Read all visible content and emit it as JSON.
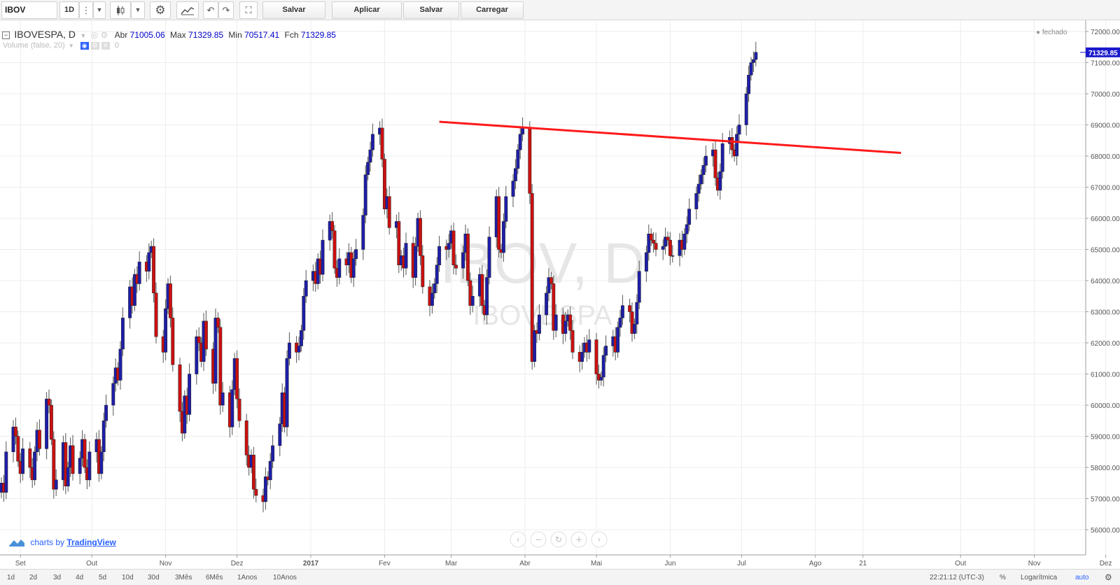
{
  "toolbar": {
    "symbol": "IBOV",
    "interval": "1D",
    "buttons": {
      "save_template": "Salvar Template",
      "apply_template": "Aplicar Template",
      "save_chart": "Salvar Chart",
      "load_chart": "Carregar Chart"
    }
  },
  "legend": {
    "symbol": "IBOVESPA, D",
    "open_label": "Abr",
    "open_value": "71005.06",
    "high_label": "Max",
    "high_value": "71329.85",
    "low_label": "Min",
    "low_value": "70517.41",
    "close_label": "Fch",
    "close_value": "71329.85",
    "volume_label": "Volume (false, 20)",
    "volume_value": "0",
    "status": "fechado"
  },
  "watermark": {
    "line1": "IBOV, D",
    "line2": "IBOVESPA"
  },
  "branding": {
    "prefix": "charts by",
    "link": "TradingView"
  },
  "price_label": "71329.85",
  "bottom_bar": {
    "timeframes": [
      "1d",
      "2d",
      "3d",
      "4d",
      "5d",
      "10d",
      "30d",
      "3Mês",
      "6Mês",
      "1Anos",
      "10Anos"
    ],
    "clock": "22:21:12 (UTC-3)",
    "percent": "%",
    "log": "Logarítmica",
    "auto": "auto"
  },
  "colors": {
    "up": "#1e1ea8",
    "down": "#cc1010",
    "trendline": "#ff1a1a",
    "accent": "#2962ff"
  },
  "chart_data": {
    "type": "candlestick",
    "title": "IBOVESPA, D",
    "y_axis": {
      "ticks": [
        "56000.00",
        "57000.00",
        "58000.00",
        "59000.00",
        "60000.00",
        "61000.00",
        "62000.00",
        "63000.00",
        "64000.00",
        "65000.00",
        "66000.00",
        "67000.00",
        "68000.00",
        "69000.00",
        "70000.00",
        "71000.00",
        "72000.00"
      ],
      "ylim": [
        55500,
        72300
      ]
    },
    "x_axis": {
      "labels": [
        "Set",
        "Out",
        "Nov",
        "Dez",
        "2017",
        "Fev",
        "Mar",
        "Abr",
        "Mai",
        "Jun",
        "Jul",
        "Ago",
        "21",
        "Out",
        "Nov",
        "Dez"
      ],
      "range": [
        "2016-08-24",
        "2017-12-31"
      ]
    },
    "closes": [
      57500,
      57200,
      58500,
      59300,
      59000,
      58200,
      57800,
      58600,
      58000,
      57600,
      58500,
      59200,
      58600,
      60200,
      60000,
      58900,
      57300,
      57600,
      58800,
      57400,
      58000,
      58700,
      57800,
      58300,
      58900,
      58000,
      57600,
      58500,
      58900,
      57800,
      58500,
      59500,
      60000,
      60700,
      61200,
      60800,
      61800,
      62800,
      63800,
      63200,
      64200,
      63900,
      64600,
      64300,
      64900,
      65100,
      63600,
      62200,
      61700,
      63100,
      63900,
      62800,
      61300,
      59800,
      59100,
      60300,
      59700,
      61000,
      62200,
      62000,
      61400,
      62700,
      61800,
      60700,
      62800,
      62500,
      60000,
      60400,
      59300,
      60500,
      61500,
      60200,
      59500,
      58400,
      58000,
      58400,
      57300,
      57100,
      56900,
      57700,
      57600,
      58200,
      58700,
      59400,
      60400,
      59300,
      61500,
      62000,
      61700,
      61900,
      62400,
      63500,
      64000,
      64300,
      63900,
      64700,
      64200,
      65300,
      65900,
      65600,
      64400,
      64100,
      64700,
      64500,
      64900,
      64100,
      64700,
      65000,
      66100,
      67400,
      67800,
      68200,
      68700,
      68900,
      67900,
      66300,
      66700,
      65700,
      65900,
      64500,
      64800,
      64400,
      65200,
      64100,
      65100,
      66000,
      64800,
      63800,
      63200,
      63600,
      63900,
      64500,
      65100,
      65000,
      65200,
      65600,
      64500,
      64400,
      64900,
      65500,
      64000,
      63200,
      63500,
      64200,
      63200,
      62900,
      64100,
      65400,
      66700,
      65000,
      64900,
      65900,
      66700,
      67200,
      67600,
      68200,
      68700,
      68900,
      66800,
      61400,
      62400,
      62300,
      62900,
      63600,
      64100,
      63900,
      62400,
      62900,
      62300,
      62700,
      62900,
      62400,
      61700,
      61400,
      61700,
      62000,
      61700,
      62100,
      61000,
      60800,
      60900,
      61600,
      61900,
      62200,
      61700,
      62500,
      62800,
      63200,
      63000,
      62300,
      62600,
      63300,
      64300,
      64900,
      65500,
      65300,
      65200,
      65000,
      65100,
      65400,
      65300,
      64800,
      64800,
      65300,
      65000,
      65500,
      65800,
      66300,
      66800,
      67100,
      67400,
      67700,
      68000,
      68200,
      67300,
      66900,
      67500,
      68400,
      68600,
      68200,
      68000,
      68700,
      69000,
      70000,
      70600,
      71000,
      71100,
      71330
    ],
    "trendline": {
      "points": [
        [
          "2017-02-24",
          69100
        ],
        [
          "2017-09-06",
          68100
        ]
      ]
    },
    "last_price": 71329.85
  }
}
